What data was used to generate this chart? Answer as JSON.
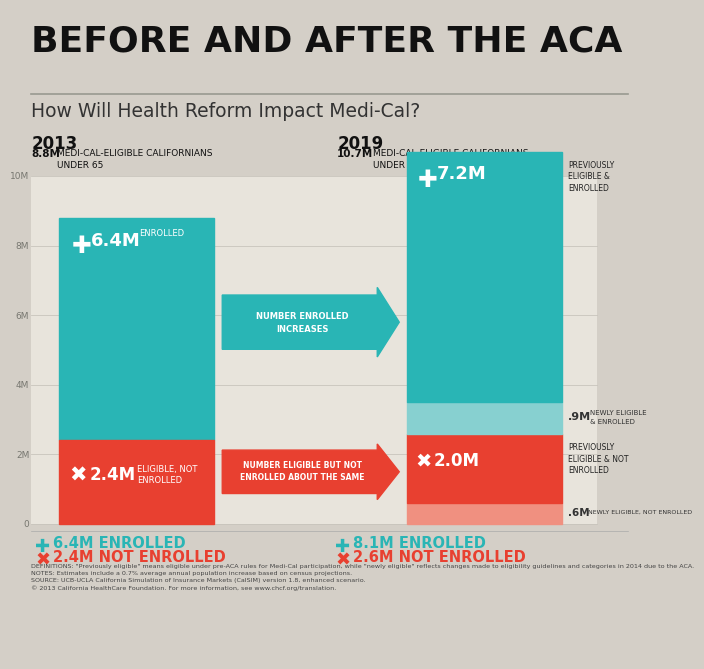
{
  "bg_color": "#d4cfc7",
  "chart_bg": "#e8e4dc",
  "teal": "#29b5b5",
  "teal_light": "#87d0d0",
  "red": "#e84030",
  "red_light": "#f09080",
  "title": "BEFORE AND AFTER THE ACA",
  "subtitle": "How Will Health Reform Impact Medi-Cal?",
  "year_left": "2013",
  "year_right": "2019",
  "bar2013_enrolled": 6.4,
  "bar2013_not_enrolled": 2.4,
  "bar2019_prev_enrolled": 7.2,
  "bar2019_new_enrolled": 0.9,
  "bar2019_prev_not": 2.0,
  "bar2019_new_not": 0.6,
  "notes": "DEFINITIONS: \"Previously eligible\" means eligible under pre-ACA rules for Medi-Cal participation, while \"newly eligible\" reflects changes made to eligibility guidelines and categories in 2014 due to the ACA.\nNOTES: Estimates include a 0.7% average annual population increase based on census projections.\nSOURCE: UCB-UCLA California Simulation of Insurance Markets (CalSIM) version 1.8, enhanced scenario.\n© 2013 California HealthCare Foundation. For more information, see www.chcf.org/translation."
}
